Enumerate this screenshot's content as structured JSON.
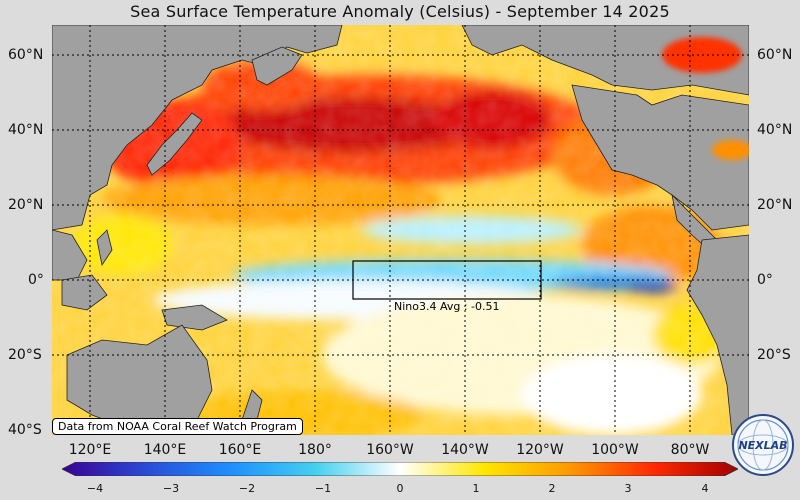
{
  "title": "Sea Surface Temperature Anomaly (Celsius) - September 14 2025",
  "lat_labels": [
    "60°N",
    "40°N",
    "20°N",
    "0°",
    "20°S",
    "40°S"
  ],
  "lon_labels": [
    "120°E",
    "140°E",
    "160°E",
    "180°",
    "160°W",
    "140°W",
    "120°W",
    "100°W",
    "80°W"
  ],
  "nino_box": {
    "label": "Nino3.4 Avg : -0.51",
    "lon_range": [
      "170°W",
      "120°W"
    ],
    "lat_range": [
      "5°S",
      "5°N"
    ]
  },
  "credit": "Data from NOAA Coral Reef Watch Program",
  "colorbar": {
    "ticks": [
      "−4",
      "−3",
      "−2",
      "−1",
      "0",
      "1",
      "2",
      "3",
      "4"
    ],
    "colors": [
      "#3a0096",
      "#2a4bd6",
      "#1e90ff",
      "#44d0f0",
      "#ffffff",
      "#ffe600",
      "#ff9900",
      "#ff2a00",
      "#a30000"
    ]
  },
  "logo_text": "NEXLAB",
  "colors": {
    "land": "#a0a0a0",
    "warm_mid": "#ffcc00",
    "warm_high": "#ff3300",
    "cool": "#55ccff"
  }
}
